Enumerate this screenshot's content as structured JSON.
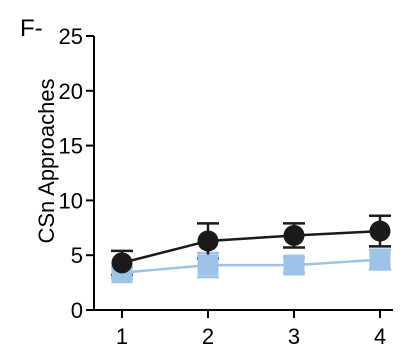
{
  "panel_label": "F-",
  "colors": {
    "series_black": "#1a1a1a",
    "series_blue": "#9dc3e6",
    "axis": "#000000"
  },
  "chart_data": {
    "type": "line",
    "title": "",
    "xlabel": "",
    "ylabel": "CSn Approaches",
    "x": [
      1,
      2,
      3,
      4
    ],
    "x_tick_labels": [
      "1",
      "2",
      "3",
      "4"
    ],
    "ylim": [
      0,
      25
    ],
    "y_ticks": [
      0,
      5,
      10,
      15,
      20,
      25
    ],
    "y_tick_labels": [
      "0",
      "5",
      "10",
      "15",
      "20",
      "25"
    ],
    "grid": false,
    "legend": "none",
    "series": [
      {
        "marker": "circle",
        "color": "#1a1a1a",
        "values": [
          4.3,
          6.3,
          6.8,
          7.2
        ],
        "errors": [
          1.1,
          1.6,
          1.1,
          1.4
        ]
      },
      {
        "marker": "square",
        "color": "#9dc3e6",
        "values": [
          3.4,
          4.1,
          4.1,
          4.6
        ],
        "errors": [
          0.5,
          1.1,
          0.7,
          0.9
        ]
      }
    ]
  }
}
